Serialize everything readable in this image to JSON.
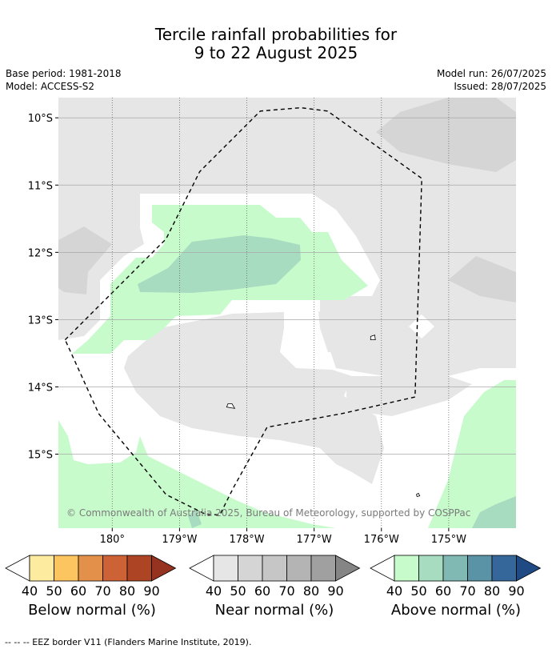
{
  "header": {
    "title_line1": "Tercile rainfall probabilities for",
    "title_line2": "9 to 22 August 2025",
    "base_period": "Base period: 1981-2018",
    "model": "Model: ACCESS-S2",
    "model_run": "Model run: 26/07/2025",
    "issued": "Issued: 28/07/2025"
  },
  "map": {
    "copyright": "© Commonwealth of Australia 2025, Bureau of Meteorology, supported by COSPPac",
    "lat_labels": [
      "10°S",
      "11°S",
      "12°S",
      "13°S",
      "14°S",
      "15°S"
    ],
    "lon_labels": [
      "180°",
      "179°W",
      "178°W",
      "177°W",
      "176°W",
      "175°W"
    ],
    "lat_values": [
      -10,
      -11,
      -12,
      -13,
      -14,
      -15
    ],
    "lon_values": [
      180,
      181,
      182,
      183,
      184,
      185
    ],
    "lon_range": [
      179.2,
      186.0
    ],
    "lat_range": [
      -9.7,
      -16.1
    ],
    "eez_border": [
      [
        179.3,
        -13.3
      ],
      [
        179.5,
        -13.1
      ],
      [
        180.8,
        -11.8
      ],
      [
        181.3,
        -10.8
      ],
      [
        182.2,
        -9.9
      ],
      [
        182.8,
        -9.85
      ],
      [
        183.2,
        -9.9
      ],
      [
        184.6,
        -10.9
      ],
      [
        184.5,
        -14.15
      ],
      [
        183.4,
        -14.4
      ],
      [
        182.3,
        -14.6
      ],
      [
        181.8,
        -15.5
      ],
      [
        181.6,
        -15.9
      ],
      [
        181.4,
        -15.9
      ],
      [
        180.8,
        -15.6
      ],
      [
        180.3,
        -15.0
      ],
      [
        179.8,
        -14.4
      ],
      [
        179.3,
        -13.3
      ]
    ],
    "land_outlines": [
      {
        "name": "island-east-1",
        "points": [
          [
            183.84,
            -13.25
          ],
          [
            183.9,
            -13.23
          ],
          [
            183.91,
            -13.3
          ],
          [
            183.84,
            -13.3
          ]
        ]
      },
      {
        "name": "island-center",
        "points": [
          [
            181.72,
            -14.25
          ],
          [
            181.78,
            -14.25
          ],
          [
            181.82,
            -14.32
          ],
          [
            181.7,
            -14.3
          ]
        ]
      },
      {
        "name": "island-southeast",
        "points": [
          [
            184.52,
            -15.6
          ],
          [
            184.55,
            -15.58
          ],
          [
            184.57,
            -15.62
          ],
          [
            184.53,
            -15.63
          ]
        ]
      }
    ]
  },
  "colorbars": [
    {
      "label": "Below normal (%)",
      "ticks": [
        "40",
        "50",
        "60",
        "70",
        "80",
        "90"
      ],
      "colors": [
        "#ffffff",
        "#fdeba0",
        "#fcc560",
        "#e3914a",
        "#cd6236",
        "#ad4424",
        "#963220"
      ]
    },
    {
      "label": "Near normal (%)",
      "ticks": [
        "40",
        "50",
        "60",
        "70",
        "80",
        "90"
      ],
      "colors": [
        "#ffffff",
        "#e6e6e6",
        "#d5d5d5",
        "#c6c6c6",
        "#b4b4b4",
        "#a0a0a0",
        "#858585"
      ]
    },
    {
      "label": "Above normal (%)",
      "ticks": [
        "40",
        "50",
        "60",
        "70",
        "80",
        "90"
      ],
      "colors": [
        "#ffffff",
        "#c8fbcc",
        "#a8dcc0",
        "#80b8b3",
        "#5a93a5",
        "#36679a",
        "#1f4a84"
      ]
    }
  ],
  "footer": "--  --  -- EEZ border V11 (Flanders Marine Institute, 2019)."
}
